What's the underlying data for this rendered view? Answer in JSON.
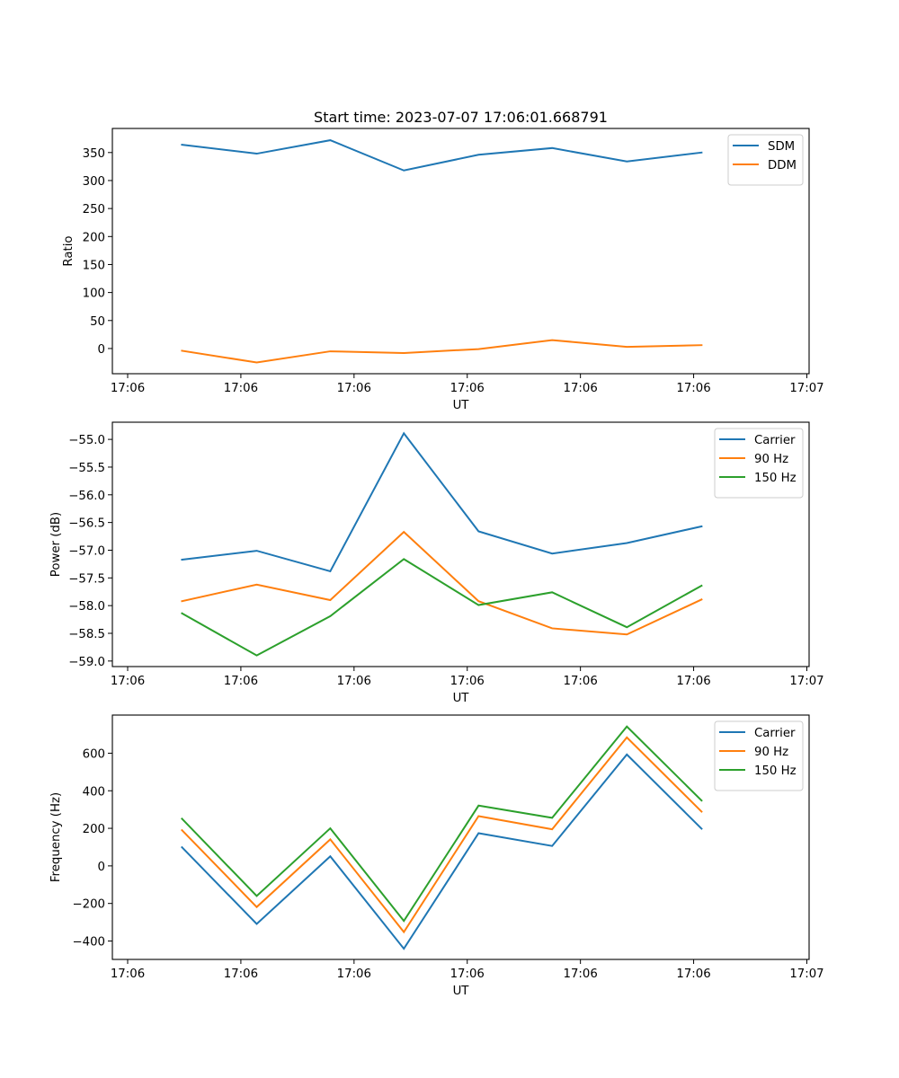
{
  "figure": {
    "title": "Start time: 2023-07-07 17:06:01.668791",
    "background": "#ffffff"
  },
  "colors": {
    "blue": "#1f77b4",
    "orange": "#ff7f0e",
    "green": "#2ca02c",
    "axis": "#000000",
    "legend_border": "#cccccc"
  },
  "chart_data": [
    {
      "type": "line",
      "title": "Start time: 2023-07-07 17:06:01.668791",
      "xlabel": "UT",
      "ylabel": "Ratio",
      "x_unit": "seconds after 17:06:00 (approx.)",
      "x": [
        4.8,
        11.4,
        17.9,
        24.4,
        31.0,
        37.5,
        44.1,
        50.7
      ],
      "xlim": [
        -1.35,
        60.2
      ],
      "xticks": [
        0,
        10,
        20,
        30,
        40,
        50,
        60
      ],
      "xtick_labels": [
        "17:06",
        "17:06",
        "17:06",
        "17:06",
        "17:06",
        "17:06",
        "17:07"
      ],
      "ylim": [
        -45,
        393
      ],
      "yticks": [
        0,
        50,
        100,
        150,
        200,
        250,
        300,
        350
      ],
      "ytick_labels": [
        "0",
        "50",
        "100",
        "150",
        "200",
        "250",
        "300",
        "350"
      ],
      "grid": false,
      "legend": "top-right",
      "series": [
        {
          "name": "SDM",
          "color": "#1f77b4",
          "values": [
            364,
            348,
            372,
            318,
            346,
            358,
            334,
            350
          ]
        },
        {
          "name": "DDM",
          "color": "#ff7f0e",
          "values": [
            -4,
            -25,
            -5,
            -8,
            -1,
            15,
            3,
            6
          ]
        }
      ]
    },
    {
      "type": "line",
      "title": "",
      "xlabel": "UT",
      "ylabel": "Power (dB)",
      "x_unit": "seconds after 17:06:00 (approx.)",
      "x": [
        4.8,
        11.4,
        17.9,
        24.4,
        31.0,
        37.5,
        44.1,
        50.7
      ],
      "xlim": [
        -1.35,
        60.2
      ],
      "xticks": [
        0,
        10,
        20,
        30,
        40,
        50,
        60
      ],
      "xtick_labels": [
        "17:06",
        "17:06",
        "17:06",
        "17:06",
        "17:06",
        "17:06",
        "17:07"
      ],
      "ylim": [
        -59.1,
        -54.69
      ],
      "yticks": [
        -59.0,
        -58.5,
        -58.0,
        -57.5,
        -57.0,
        -56.5,
        -56.0,
        -55.5,
        -55.0
      ],
      "ytick_labels": [
        "−59.0",
        "−58.5",
        "−58.0",
        "−57.5",
        "−57.0",
        "−56.5",
        "−56.0",
        "−55.5",
        "−55.0"
      ],
      "grid": false,
      "legend": "top-right",
      "series": [
        {
          "name": "Carrier",
          "color": "#1f77b4",
          "values": [
            -57.17,
            -57.01,
            -57.38,
            -54.89,
            -56.66,
            -57.06,
            -56.87,
            -56.57
          ]
        },
        {
          "name": "90 Hz",
          "color": "#ff7f0e",
          "values": [
            -57.92,
            -57.62,
            -57.9,
            -56.67,
            -57.92,
            -58.41,
            -58.52,
            -57.89
          ]
        },
        {
          "name": "150 Hz",
          "color": "#2ca02c",
          "values": [
            -58.14,
            -58.9,
            -58.19,
            -57.16,
            -57.99,
            -57.76,
            -58.39,
            -57.64
          ]
        }
      ]
    },
    {
      "type": "line",
      "title": "",
      "xlabel": "UT",
      "ylabel": "Frequency (Hz)",
      "x_unit": "seconds after 17:06:00 (approx.)",
      "x": [
        4.8,
        11.4,
        17.9,
        24.4,
        31.0,
        37.5,
        44.1,
        50.7
      ],
      "xlim": [
        -1.35,
        60.2
      ],
      "xticks": [
        0,
        10,
        20,
        30,
        40,
        50,
        60
      ],
      "xtick_labels": [
        "17:06",
        "17:06",
        "17:06",
        "17:06",
        "17:06",
        "17:06",
        "17:07"
      ],
      "ylim": [
        -498,
        803
      ],
      "yticks": [
        -400,
        -200,
        0,
        200,
        400,
        600
      ],
      "ytick_labels": [
        "−400",
        "−200",
        "0",
        "200",
        "400",
        "600"
      ],
      "grid": false,
      "legend": "top-right",
      "series": [
        {
          "name": "Carrier",
          "color": "#1f77b4",
          "values": [
            99,
            -309,
            51,
            -441,
            174,
            106,
            593,
            198
          ]
        },
        {
          "name": "90 Hz",
          "color": "#ff7f0e",
          "values": [
            190,
            -219,
            141,
            -352,
            265,
            195,
            684,
            289
          ]
        },
        {
          "name": "150 Hz",
          "color": "#2ca02c",
          "values": [
            251,
            -160,
            200,
            -293,
            321,
            256,
            742,
            348
          ]
        }
      ]
    }
  ]
}
